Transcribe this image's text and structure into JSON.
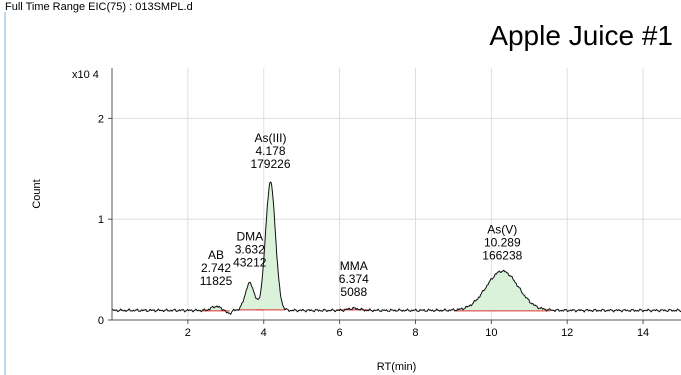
{
  "header": {
    "trace_title": "Full Time Range EIC(75) : 013SMPL.d",
    "sample_title": "Apple Juice #1"
  },
  "colors": {
    "trace": "#111111",
    "peak_fill": "#d9f2d9",
    "baseline": "#e03030",
    "axis": "#555555",
    "grid": "#dedede",
    "frame": "#7fb3d9"
  },
  "chart_data": {
    "type": "line",
    "xlabel": "RT(min)",
    "ylabel": "Count",
    "y_multiplier": "x10 4",
    "xlim": [
      0,
      15
    ],
    "ylim": [
      0,
      2.5
    ],
    "x_ticks": [
      2,
      4,
      6,
      8,
      10,
      12,
      14
    ],
    "y_ticks": [
      0,
      1,
      2
    ],
    "grid": true,
    "peaks": [
      {
        "name": "AB",
        "rt": "2.742",
        "area": "11825",
        "rt_value": 2.742,
        "height": 0.13,
        "width": 0.12,
        "baseline": 0.09
      },
      {
        "name": "DMA",
        "rt": "3.632",
        "area": "43212",
        "rt_value": 3.632,
        "height": 0.37,
        "width": 0.12,
        "baseline": 0.1
      },
      {
        "name": "As(III)",
        "rt": "4.178",
        "area": "179226",
        "rt_value": 4.178,
        "height": 1.37,
        "width": 0.13,
        "baseline": 0.1
      },
      {
        "name": "MMA",
        "rt": "6.374",
        "area": "5088",
        "rt_value": 6.374,
        "height": 0.12,
        "width": 0.15,
        "baseline": 0.1
      },
      {
        "name": "As(V)",
        "rt": "10.289",
        "area": "166238",
        "rt_value": 10.289,
        "height": 0.48,
        "width": 0.42,
        "baseline": 0.09
      }
    ]
  }
}
